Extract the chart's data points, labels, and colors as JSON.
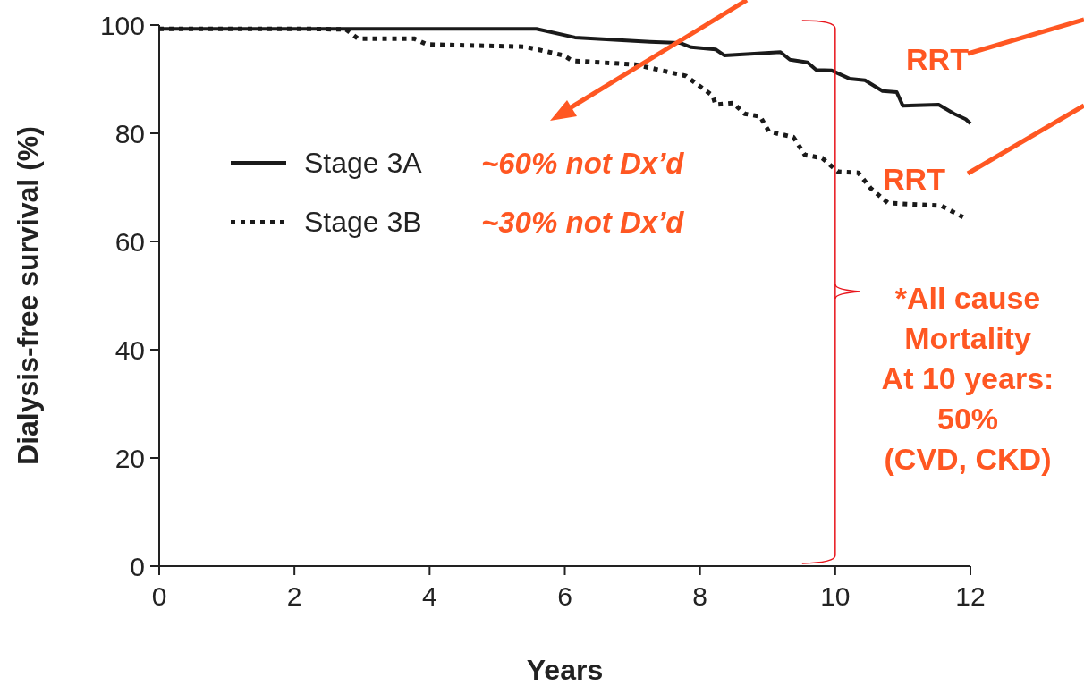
{
  "chart_data": {
    "type": "step",
    "xlabel": "Years",
    "ylabel": "Dialysis-free survival (%)",
    "xlim": [
      0,
      12
    ],
    "xticks": [
      0,
      2,
      4,
      6,
      8,
      10,
      12
    ],
    "ylim": [
      0,
      100
    ],
    "yticks": [
      0,
      20,
      40,
      60,
      80,
      100
    ],
    "legend": "left",
    "grid": false,
    "series": [
      {
        "name": "Stage 3A",
        "color": "#1a1a1a",
        "line_style": "solid",
        "x": [
          0,
          5.58,
          6.15,
          7.26,
          7.7,
          7.87,
          8.23,
          8.36,
          9.19,
          9.33,
          9.59,
          9.72,
          9.95,
          10.21,
          10.44,
          10.7,
          10.91,
          11.0,
          11.53,
          11.76,
          11.93,
          12.0
        ],
        "values": [
          99.3,
          99.3,
          97.7,
          96.9,
          96.7,
          95.9,
          95.5,
          94.4,
          95.0,
          93.6,
          93.1,
          91.7,
          91.6,
          90.1,
          89.8,
          87.8,
          87.6,
          85.1,
          85.3,
          83.6,
          82.6,
          81.8
        ]
      },
      {
        "name": "Stage 3B",
        "color": "#1a1a1a",
        "line_style": "dotted",
        "x": [
          0,
          2.1,
          2.76,
          2.94,
          3.77,
          3.96,
          5.41,
          5.98,
          6.11,
          7.04,
          7.79,
          8.19,
          8.23,
          8.49,
          8.66,
          8.89,
          9.02,
          9.38,
          9.55,
          9.81,
          10.04,
          10.34,
          10.52,
          10.78,
          11.57,
          11.89
        ],
        "values": [
          99.3,
          99.3,
          99.2,
          97.5,
          97.5,
          96.4,
          96.0,
          94.4,
          93.4,
          92.7,
          90.6,
          86.9,
          85.3,
          85.6,
          83.6,
          83.1,
          80.3,
          79.3,
          76.0,
          75.4,
          72.9,
          72.7,
          69.9,
          67.1,
          66.6,
          64.5
        ]
      }
    ],
    "ref_lines": [
      {
        "axis": "x",
        "value": 10,
        "color": "#e8141b"
      }
    ],
    "annotations": [
      "~60% not Dx’d",
      "~30% not Dx’d",
      "RRT",
      "RRT",
      "*All cause Mortality At 10 years: 50% (CVD, CKD)"
    ]
  }
}
